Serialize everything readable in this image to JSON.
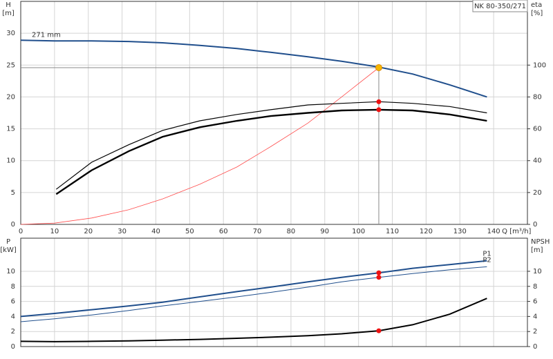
{
  "chart_data": [
    {
      "type": "line",
      "title": "NK 80-350/271",
      "x_label": "Q [m³/h]",
      "y_label": "H",
      "y_unit": "[m]",
      "y2_label": "eta",
      "y2_unit": "[%]",
      "xlim": [
        0,
        150
      ],
      "xticks": [
        0,
        10,
        20,
        30,
        40,
        50,
        60,
        70,
        80,
        90,
        100,
        110,
        120,
        130,
        140
      ],
      "xtick_labels": true,
      "ylim": [
        0,
        35
      ],
      "yticks": [
        0,
        5,
        10,
        15,
        20,
        25,
        30
      ],
      "y2lim": [
        0,
        140
      ],
      "y2ticks": [
        0,
        20,
        40,
        60,
        80,
        100
      ],
      "grid": true,
      "crosshair": {
        "x": 106,
        "y": 24.6,
        "color": "#888888"
      },
      "series": [
        {
          "name": "271 mm",
          "color": "#1f4e8c",
          "line_width": 2,
          "x": [
            0,
            10,
            21,
            32,
            42,
            53,
            64,
            74,
            85,
            95,
            106,
            116,
            127,
            138
          ],
          "values": [
            28.9,
            28.8,
            28.8,
            28.7,
            28.5,
            28.1,
            27.6,
            27.0,
            26.3,
            25.6,
            24.7,
            23.6,
            21.9,
            20.0
          ]
        },
        {
          "color": "#ff4b4b",
          "line_width": 0.8,
          "x": [
            0,
            10,
            21,
            32,
            42,
            53,
            64,
            74,
            85,
            95,
            106
          ],
          "values": [
            0,
            0.2,
            1.0,
            2.3,
            4.0,
            6.3,
            9.0,
            12.2,
            15.9,
            20.0,
            24.6
          ]
        },
        {
          "color": "#000000",
          "line_width": 1.2,
          "axis": "y2",
          "x": [
            10.5,
            21,
            32,
            42,
            53,
            64,
            74,
            85,
            95,
            106,
            116,
            127,
            138
          ],
          "values": [
            22,
            39,
            50,
            59,
            65,
            69,
            72,
            75,
            76,
            77,
            76,
            74,
            70
          ]
        },
        {
          "color": "#000000",
          "line_width": 2.4,
          "axis": "y2",
          "x": [
            10.5,
            21,
            32,
            42,
            53,
            64,
            74,
            85,
            95,
            106,
            116,
            127,
            138
          ],
          "values": [
            19,
            34,
            46,
            55,
            61,
            65,
            68,
            70,
            71.5,
            72,
            71.5,
            69,
            65
          ]
        }
      ],
      "points": [
        {
          "x": 106,
          "y": 24.6,
          "color": "#f5b800"
        },
        {
          "x": 106,
          "y": 77,
          "color": "#ee1111",
          "axis": "y2"
        },
        {
          "x": 106,
          "y": 72,
          "color": "#ee1111",
          "axis": "y2"
        }
      ]
    },
    {
      "type": "line",
      "y_label": "P",
      "y_unit": "[kW]",
      "y2_label": "NPSH",
      "y2_unit": "[m]",
      "xlim": [
        0,
        150
      ],
      "xticks": [
        0,
        10,
        20,
        30,
        40,
        50,
        60,
        70,
        80,
        90,
        100,
        110,
        120,
        130,
        140
      ],
      "xtick_labels": false,
      "ylim": [
        0,
        14.4
      ],
      "yticks": [
        0,
        2,
        4,
        6,
        8,
        10
      ],
      "y2lim": [
        0,
        14.4
      ],
      "y2ticks": [
        0,
        2,
        4,
        6,
        8,
        10
      ],
      "grid": true,
      "series": [
        {
          "name": "P1",
          "color": "#1f4e8c",
          "line_width": 2,
          "x": [
            0,
            10,
            21,
            32,
            42,
            53,
            64,
            74,
            85,
            95,
            106,
            116,
            127,
            138
          ],
          "values": [
            4.0,
            4.4,
            4.9,
            5.4,
            5.9,
            6.6,
            7.3,
            7.9,
            8.6,
            9.2,
            9.8,
            10.4,
            10.9,
            11.4
          ]
        },
        {
          "name": "P2",
          "color": "#1f4e8c",
          "line_width": 1,
          "x": [
            0,
            10,
            21,
            32,
            42,
            53,
            64,
            74,
            85,
            95,
            106,
            116,
            127,
            138
          ],
          "values": [
            3.3,
            3.7,
            4.2,
            4.8,
            5.4,
            6.0,
            6.6,
            7.2,
            7.9,
            8.6,
            9.2,
            9.7,
            10.2,
            10.6
          ]
        },
        {
          "color": "#000000",
          "line_width": 2,
          "axis": "y2",
          "x": [
            0,
            10,
            21,
            32,
            42,
            53,
            64,
            74,
            85,
            95,
            106,
            116,
            127,
            138
          ],
          "values": [
            0.7,
            0.65,
            0.7,
            0.75,
            0.85,
            0.95,
            1.1,
            1.25,
            1.45,
            1.7,
            2.1,
            2.9,
            4.3,
            6.4
          ]
        }
      ],
      "points": [
        {
          "x": 106,
          "y": 9.8,
          "color": "#ee1111"
        },
        {
          "x": 106,
          "y": 9.2,
          "color": "#ee1111"
        },
        {
          "x": 106,
          "y": 2.1,
          "color": "#ee1111",
          "axis": "y2"
        }
      ]
    }
  ]
}
